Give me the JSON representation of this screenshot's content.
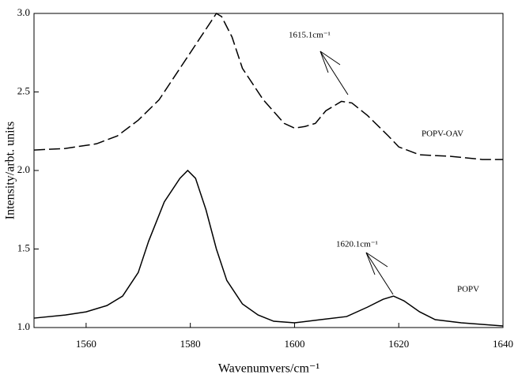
{
  "chart_data": {
    "type": "line",
    "xlabel": "Wavenumvers/cm⁻¹",
    "ylabel": "Intensity/arbt. units",
    "annotations": [
      "1615.1cm⁻¹",
      "1620.1cm⁻¹"
    ],
    "xlim": [
      1550,
      1640
    ],
    "xticks": [
      1560,
      1580,
      1600,
      1620,
      1640
    ],
    "ylim": [
      1.0,
      3.0
    ],
    "yticks": [
      {
        "value": 1.0,
        "label": "1.0"
      },
      1.5,
      {
        "value": 2.0,
        "label": "2.0"
      },
      2.5,
      {
        "value": 3.0,
        "label": "3.0"
      }
    ],
    "series": [
      {
        "name": "POPV-OAV",
        "color": "#000000",
        "dash": true,
        "x": [
          1550,
          1556,
          1562,
          1566,
          1570,
          1574,
          1578,
          1582,
          1585,
          1586,
          1588,
          1590,
          1594,
          1598,
          1600,
          1602,
          1604,
          1606,
          1609,
          1611,
          1614,
          1618,
          1620,
          1624,
          1630,
          1636,
          1640
        ],
        "values": [
          2.13,
          2.14,
          2.17,
          2.22,
          2.32,
          2.45,
          2.65,
          2.85,
          3.0,
          2.98,
          2.85,
          2.65,
          2.45,
          2.3,
          2.27,
          2.28,
          2.3,
          2.38,
          2.44,
          2.43,
          2.35,
          2.22,
          2.15,
          2.1,
          2.09,
          2.07,
          2.07
        ]
      },
      {
        "name": "POPV",
        "color": "#000000",
        "dash": false,
        "x": [
          1550,
          1556,
          1560,
          1564,
          1567,
          1570,
          1572,
          1575,
          1578,
          1579.5,
          1581,
          1583,
          1585,
          1587,
          1590,
          1593,
          1596,
          1600,
          1605,
          1610,
          1614,
          1617,
          1619,
          1621,
          1624,
          1627,
          1632,
          1640
        ],
        "values": [
          1.06,
          1.08,
          1.1,
          1.14,
          1.2,
          1.35,
          1.55,
          1.8,
          1.95,
          2.0,
          1.95,
          1.75,
          1.5,
          1.3,
          1.15,
          1.08,
          1.04,
          1.03,
          1.05,
          1.07,
          1.13,
          1.18,
          1.2,
          1.17,
          1.1,
          1.05,
          1.03,
          1.01
        ]
      }
    ]
  }
}
